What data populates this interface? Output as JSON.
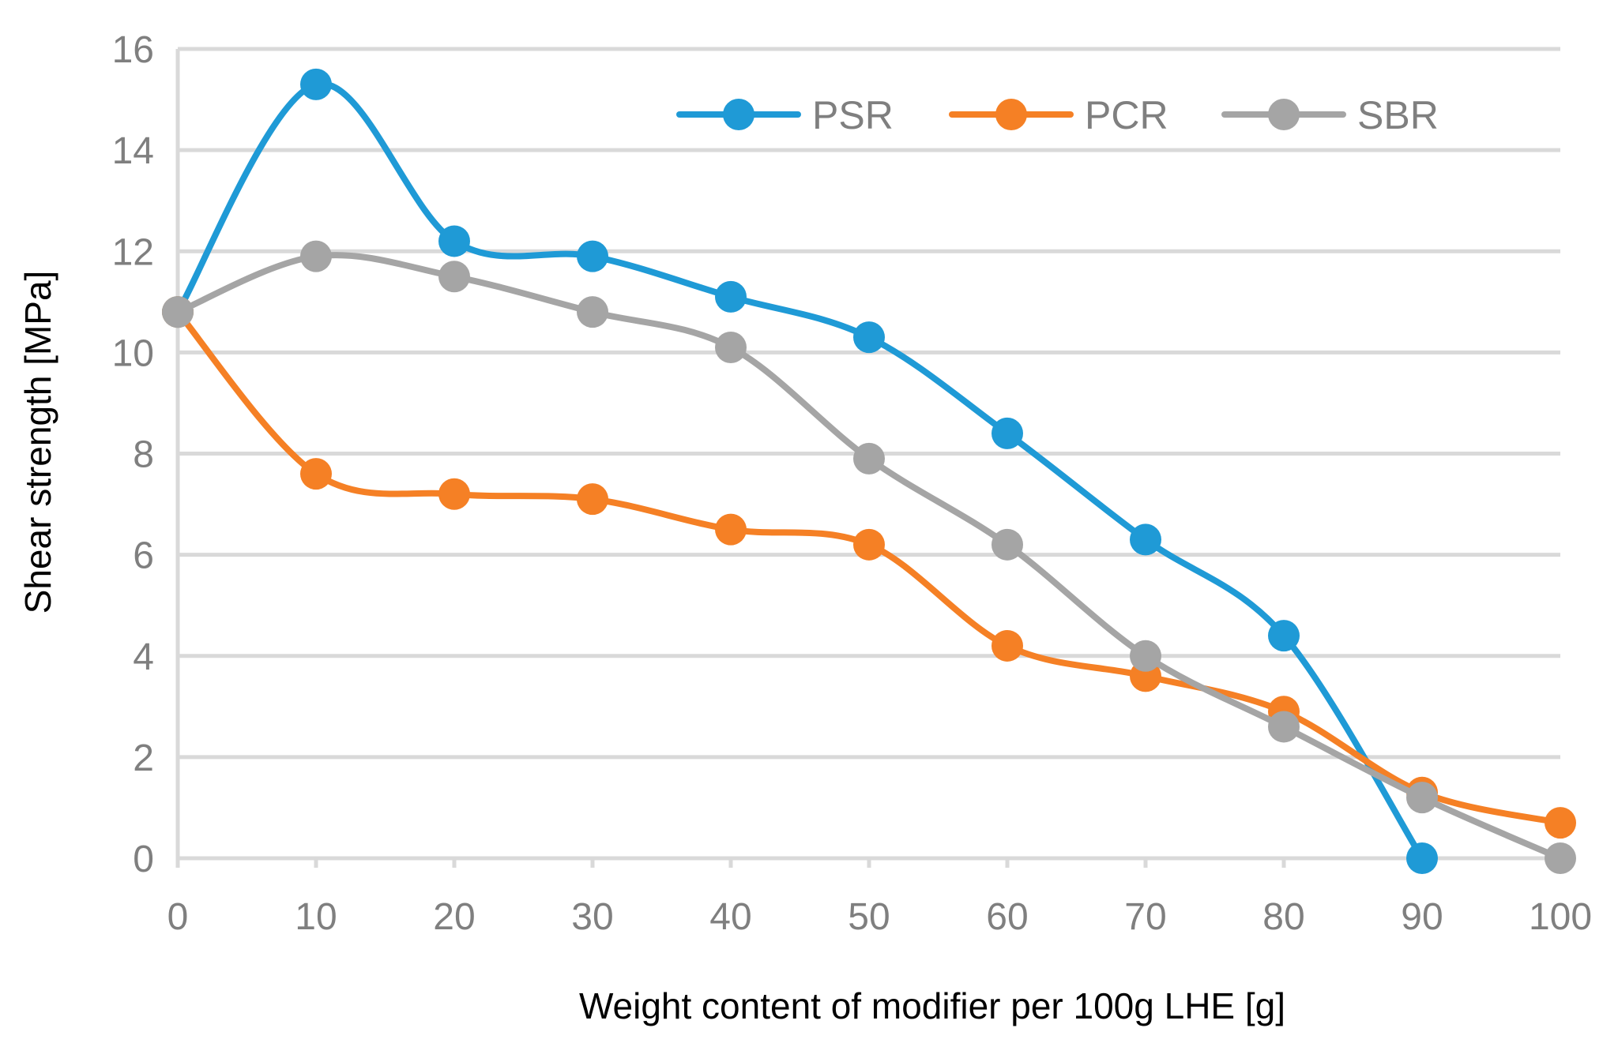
{
  "chart_data": {
    "type": "line",
    "title": "",
    "xlabel": "Weight content of modifier per 100g LHE [g]",
    "ylabel": "Shear strength [MPa]",
    "xlim": [
      0,
      100
    ],
    "ylim": [
      0,
      16
    ],
    "x_ticks": [
      "0",
      "10",
      "20",
      "30",
      "40",
      "50",
      "60",
      "70",
      "80",
      "90",
      "100"
    ],
    "y_ticks": [
      "0",
      "2",
      "4",
      "6",
      "8",
      "10",
      "12",
      "14",
      "16"
    ],
    "grid": true,
    "legend_position": "top-right",
    "series": [
      {
        "name": "PSR",
        "color": "#1f9ad6",
        "x": [
          0,
          10,
          20,
          30,
          40,
          50,
          60,
          70,
          80,
          90
        ],
        "values": [
          10.8,
          15.3,
          12.2,
          11.9,
          11.1,
          10.3,
          8.4,
          6.3,
          4.4,
          0.0
        ]
      },
      {
        "name": "PCR",
        "color": "#f58025",
        "x": [
          0,
          10,
          20,
          30,
          40,
          50,
          60,
          70,
          80,
          90,
          100
        ],
        "values": [
          10.8,
          7.6,
          7.2,
          7.1,
          6.5,
          6.2,
          4.2,
          3.6,
          2.9,
          1.3,
          0.7
        ]
      },
      {
        "name": "SBR",
        "color": "#a5a5a5",
        "x": [
          0,
          10,
          20,
          30,
          40,
          50,
          60,
          70,
          80,
          90,
          100
        ],
        "values": [
          10.8,
          11.9,
          11.5,
          10.8,
          10.1,
          7.9,
          6.2,
          4.0,
          2.6,
          1.2,
          0.0
        ]
      }
    ]
  }
}
